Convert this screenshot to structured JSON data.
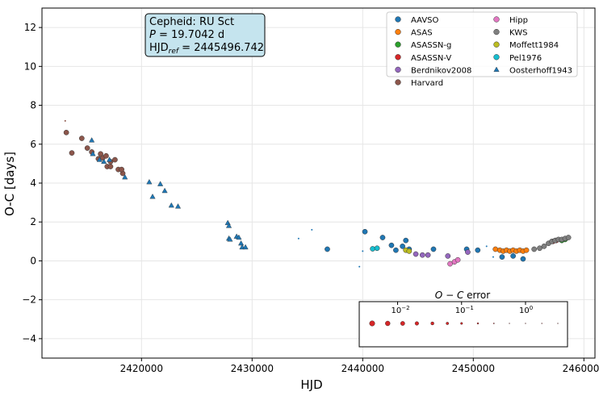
{
  "chart_data": {
    "type": "scatter",
    "xlabel": "HJD",
    "ylabel": "O-C [days]",
    "xlim": [
      2411000,
      2461000
    ],
    "ylim": [
      -5,
      13
    ],
    "xticks": [
      2420000,
      2430000,
      2440000,
      2450000,
      2460000
    ],
    "xtick_labels": [
      "2420000",
      "2430000",
      "2440000",
      "2450000",
      "2460000"
    ],
    "yticks": [
      -4,
      -2,
      0,
      2,
      4,
      6,
      8,
      10,
      12
    ],
    "ytick_labels": [
      "−4",
      "−2",
      "0",
      "2",
      "4",
      "6",
      "8",
      "10",
      "12"
    ],
    "grid": true,
    "legend_position": "top-right",
    "info_box": {
      "line1": "Cepheid: RU Sct",
      "line2_var": "P",
      "line2_val": " = 19.7042 d",
      "line3_var": "HJD",
      "line3_sub": "ref",
      "line3_val": " = 2445496.742"
    },
    "error_legend": {
      "title_a": "O",
      "title_op": " − ",
      "title_b": "C",
      "title_c": " error",
      "ticks": [
        {
          "value": 0.01,
          "base": "10",
          "exp": "−2"
        },
        {
          "value": 0.1,
          "base": "10",
          "exp": "−1"
        },
        {
          "value": 1,
          "base": "10",
          "exp": "0"
        }
      ],
      "samples": [
        0.004,
        0.007,
        0.012,
        0.02,
        0.035,
        0.06,
        0.1,
        0.18,
        0.32,
        0.56,
        1.0,
        1.8,
        3.2
      ]
    },
    "series": [
      {
        "name": "AAVSO",
        "color": "#1f77b4",
        "marker": "circle",
        "points": [
          [
            2436800,
            0.6
          ],
          [
            2440200,
            1.5
          ],
          [
            2441800,
            1.2
          ],
          [
            2442600,
            0.8
          ],
          [
            2443000,
            0.55
          ],
          [
            2443600,
            0.75
          ],
          [
            2443900,
            1.05
          ],
          [
            2444200,
            0.6
          ],
          [
            2446400,
            0.6
          ],
          [
            2449400,
            0.6
          ],
          [
            2450400,
            0.55
          ],
          [
            2452600,
            0.2
          ],
          [
            2453600,
            0.25
          ],
          [
            2454500,
            0.1
          ]
        ]
      },
      {
        "name": "ASAS",
        "color": "#ff7f0e",
        "marker": "circle",
        "points": [
          [
            2452000,
            0.6
          ],
          [
            2452400,
            0.55
          ],
          [
            2452700,
            0.5
          ],
          [
            2453000,
            0.55
          ],
          [
            2453300,
            0.5
          ],
          [
            2453600,
            0.55
          ],
          [
            2453900,
            0.5
          ],
          [
            2454200,
            0.55
          ],
          [
            2454500,
            0.5
          ],
          [
            2454800,
            0.55
          ]
        ]
      },
      {
        "name": "ASASSN-g",
        "color": "#2ca02c",
        "marker": "circle",
        "points": [
          [
            2458000,
            1.05
          ],
          [
            2458300,
            1.1
          ]
        ]
      },
      {
        "name": "ASASSN-V",
        "color": "#d62728",
        "marker": "circle",
        "points": [
          [
            2457200,
            1.0
          ],
          [
            2457500,
            1.05
          ]
        ]
      },
      {
        "name": "Berdnikov2008",
        "color": "#9467bd",
        "marker": "circle",
        "points": [
          [
            2444800,
            0.35
          ],
          [
            2445400,
            0.3
          ],
          [
            2445900,
            0.3
          ],
          [
            2447700,
            0.25
          ],
          [
            2449500,
            0.45
          ]
        ]
      },
      {
        "name": "Harvard",
        "color": "#8c564b",
        "marker": "circle",
        "points": [
          [
            2413200,
            6.6
          ],
          [
            2413700,
            5.55
          ],
          [
            2414600,
            6.3
          ],
          [
            2415100,
            5.8
          ],
          [
            2415500,
            5.6
          ],
          [
            2416100,
            5.25
          ],
          [
            2416500,
            5.3
          ],
          [
            2416800,
            5.4
          ],
          [
            2417200,
            5.1
          ],
          [
            2417600,
            5.2
          ],
          [
            2417900,
            4.7
          ],
          [
            2418300,
            4.5
          ],
          [
            2418200,
            4.7
          ],
          [
            2416300,
            5.5
          ],
          [
            2416900,
            4.85
          ],
          [
            2417200,
            4.85
          ]
        ]
      },
      {
        "name": "Hipp",
        "color": "#e377c2",
        "marker": "circle",
        "points": [
          [
            2447900,
            -0.15
          ],
          [
            2448300,
            -0.05
          ],
          [
            2448600,
            0.05
          ]
        ]
      },
      {
        "name": "KWS",
        "color": "#7f7f7f",
        "marker": "circle",
        "points": [
          [
            2455500,
            0.6
          ],
          [
            2456000,
            0.65
          ],
          [
            2456400,
            0.75
          ],
          [
            2456800,
            0.9
          ],
          [
            2457100,
            1.0
          ],
          [
            2457400,
            1.05
          ],
          [
            2457700,
            1.1
          ],
          [
            2458000,
            1.1
          ],
          [
            2458300,
            1.15
          ],
          [
            2458600,
            1.2
          ]
        ]
      },
      {
        "name": "Moffett1984",
        "color": "#bcbd22",
        "marker": "circle",
        "points": [
          [
            2443900,
            0.55
          ],
          [
            2444200,
            0.5
          ]
        ]
      },
      {
        "name": "Pel1976",
        "color": "#17becf",
        "marker": "circle",
        "points": [
          [
            2440900,
            0.62
          ],
          [
            2441300,
            0.65
          ]
        ]
      },
      {
        "name": "Oosterhoff1943",
        "color": "#1f77b4",
        "marker": "triangle",
        "points": [
          [
            2415500,
            6.2
          ],
          [
            2415600,
            5.5
          ],
          [
            2416200,
            5.2
          ],
          [
            2416600,
            5.1
          ],
          [
            2417100,
            5.2
          ],
          [
            2418500,
            4.3
          ],
          [
            2420700,
            4.05
          ],
          [
            2421000,
            3.3
          ],
          [
            2421700,
            3.95
          ],
          [
            2422100,
            3.6
          ],
          [
            2422700,
            2.85
          ],
          [
            2423300,
            2.8
          ],
          [
            2427800,
            1.95
          ],
          [
            2427900,
            1.8
          ],
          [
            2427900,
            1.15
          ],
          [
            2428000,
            1.1
          ],
          [
            2428600,
            1.25
          ],
          [
            2428800,
            1.2
          ],
          [
            2429000,
            0.9
          ],
          [
            2429100,
            0.7
          ],
          [
            2429400,
            0.7
          ]
        ]
      }
    ],
    "small_points": [
      {
        "x": 2413100,
        "y": 7.2,
        "color": "#8c564b"
      },
      {
        "x": 2434200,
        "y": 1.15,
        "color": "#1f77b4"
      },
      {
        "x": 2435400,
        "y": 1.6,
        "color": "#1f77b4"
      },
      {
        "x": 2439700,
        "y": -0.3,
        "color": "#1f77b4"
      },
      {
        "x": 2440000,
        "y": 0.5,
        "color": "#1f77b4"
      },
      {
        "x": 2451200,
        "y": 0.75,
        "color": "#1f77b4"
      },
      {
        "x": 2451800,
        "y": 0.2,
        "color": "#1f77b4"
      }
    ]
  }
}
